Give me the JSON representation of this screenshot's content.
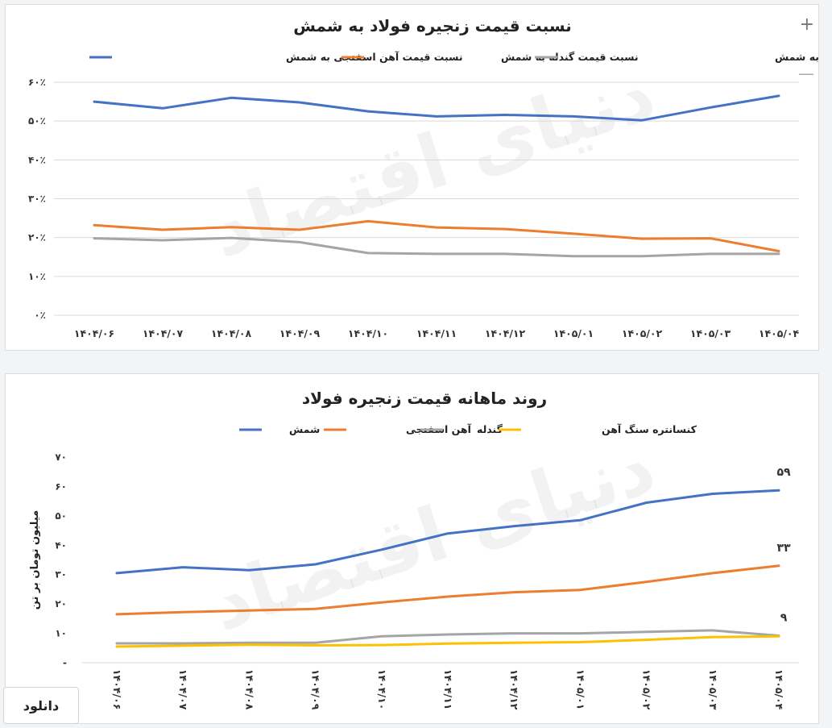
{
  "controls": {
    "plus": "+",
    "minus": "—",
    "download": "دانلود"
  },
  "watermark": "دنیای اقتصاد",
  "colors": {
    "blue": "#4472c4",
    "orange": "#ed7d31",
    "gray": "#a5a5a5",
    "yellow": "#ffc000"
  },
  "chart_data": [
    {
      "type": "line",
      "title": "نسبت قیمت زنجیره فولاد به شمش",
      "legend_position": "top",
      "grid": true,
      "categories": [
        "۱۴۰۴/۰۶",
        "۱۴۰۴/۰۷",
        "۱۴۰۴/۰۸",
        "۱۴۰۴/۰۹",
        "۱۴۰۴/۱۰",
        "۱۴۰۴/۱۱",
        "۱۴۰۴/۱۲",
        "۱۴۰۵/۰۱",
        "۱۴۰۵/۰۲",
        "۱۴۰۵/۰۳",
        "۱۴۰۵/۰۴"
      ],
      "yticks": [
        "۰٪",
        "۱۰٪",
        "۲۰٪",
        "۳۰٪",
        "۴۰٪",
        "۵۰٪",
        "۶۰٪"
      ],
      "ylim": [
        0,
        60
      ],
      "series": [
        {
          "name": "نسبت قیمت آهن اسفنجی به شمش",
          "color": "#4472c4",
          "values": [
            55,
            53.3,
            56,
            54.8,
            52.5,
            51.2,
            51.6,
            51.2,
            50.2,
            53.5,
            56.5
          ]
        },
        {
          "name": "نسبت قیمت گندله به شمش",
          "color": "#ed7d31",
          "values": [
            23.2,
            22,
            22.7,
            22,
            24.2,
            22.6,
            22.2,
            21,
            19.7,
            19.8,
            16.5
          ]
        },
        {
          "name": "نسبت قیمت کنسانتره سنگ آهن به شمش",
          "color": "#a5a5a5",
          "values": [
            19.8,
            19.3,
            19.9,
            18.8,
            16,
            15.8,
            15.8,
            15.2,
            15.2,
            15.8,
            15.8
          ]
        }
      ]
    },
    {
      "type": "line",
      "title": "روند ماهانه قیمت زنجیره فولاد",
      "ylabel": "میلیون تومان بر تن",
      "legend_position": "top",
      "grid": false,
      "categories": [
        "۱۴۰۴/۰۶",
        "۱۴۰۴/۰۷",
        "۱۴۰۴/۰۸",
        "۱۴۰۴/۰۹",
        "۱۴۰۴/۱۰",
        "۱۴۰۴/۱۱",
        "۱۴۰۴/۱۲",
        "۱۴۰۵/۰۱",
        "۱۴۰۵/۰۲",
        "۱۴۰۵/۰۳",
        "۱۴۰۵/۰۴"
      ],
      "yticks": [
        "-",
        "۱۰",
        "۲۰",
        "۳۰",
        "۴۰",
        "۵۰",
        "۶۰",
        "۷۰"
      ],
      "ylim": [
        0,
        70
      ],
      "series": [
        {
          "name": "شمش",
          "color": "#4472c4",
          "end_label": "۵۹",
          "values": [
            30.5,
            32.5,
            31.5,
            33.5,
            38.5,
            44,
            46.5,
            48.5,
            54.5,
            57.5,
            58.7
          ]
        },
        {
          "name": "آهن اسفنجی",
          "color": "#ed7d31",
          "end_label": "۳۳",
          "values": [
            16.5,
            17.2,
            17.8,
            18.3,
            20.5,
            22.5,
            24,
            24.8,
            27.5,
            30.5,
            33
          ]
        },
        {
          "name": "گندله",
          "color": "#a5a5a5",
          "end_label": "۹",
          "values": [
            6.6,
            6.6,
            6.8,
            6.8,
            9,
            9.6,
            10,
            10,
            10.5,
            11,
            9.2
          ]
        },
        {
          "name": "کنسانتره سنگ آهن",
          "color": "#ffc000",
          "end_label": "",
          "values": [
            5.5,
            5.8,
            6.1,
            5.9,
            6,
            6.5,
            6.8,
            7,
            7.8,
            8.7,
            9
          ]
        }
      ]
    }
  ]
}
